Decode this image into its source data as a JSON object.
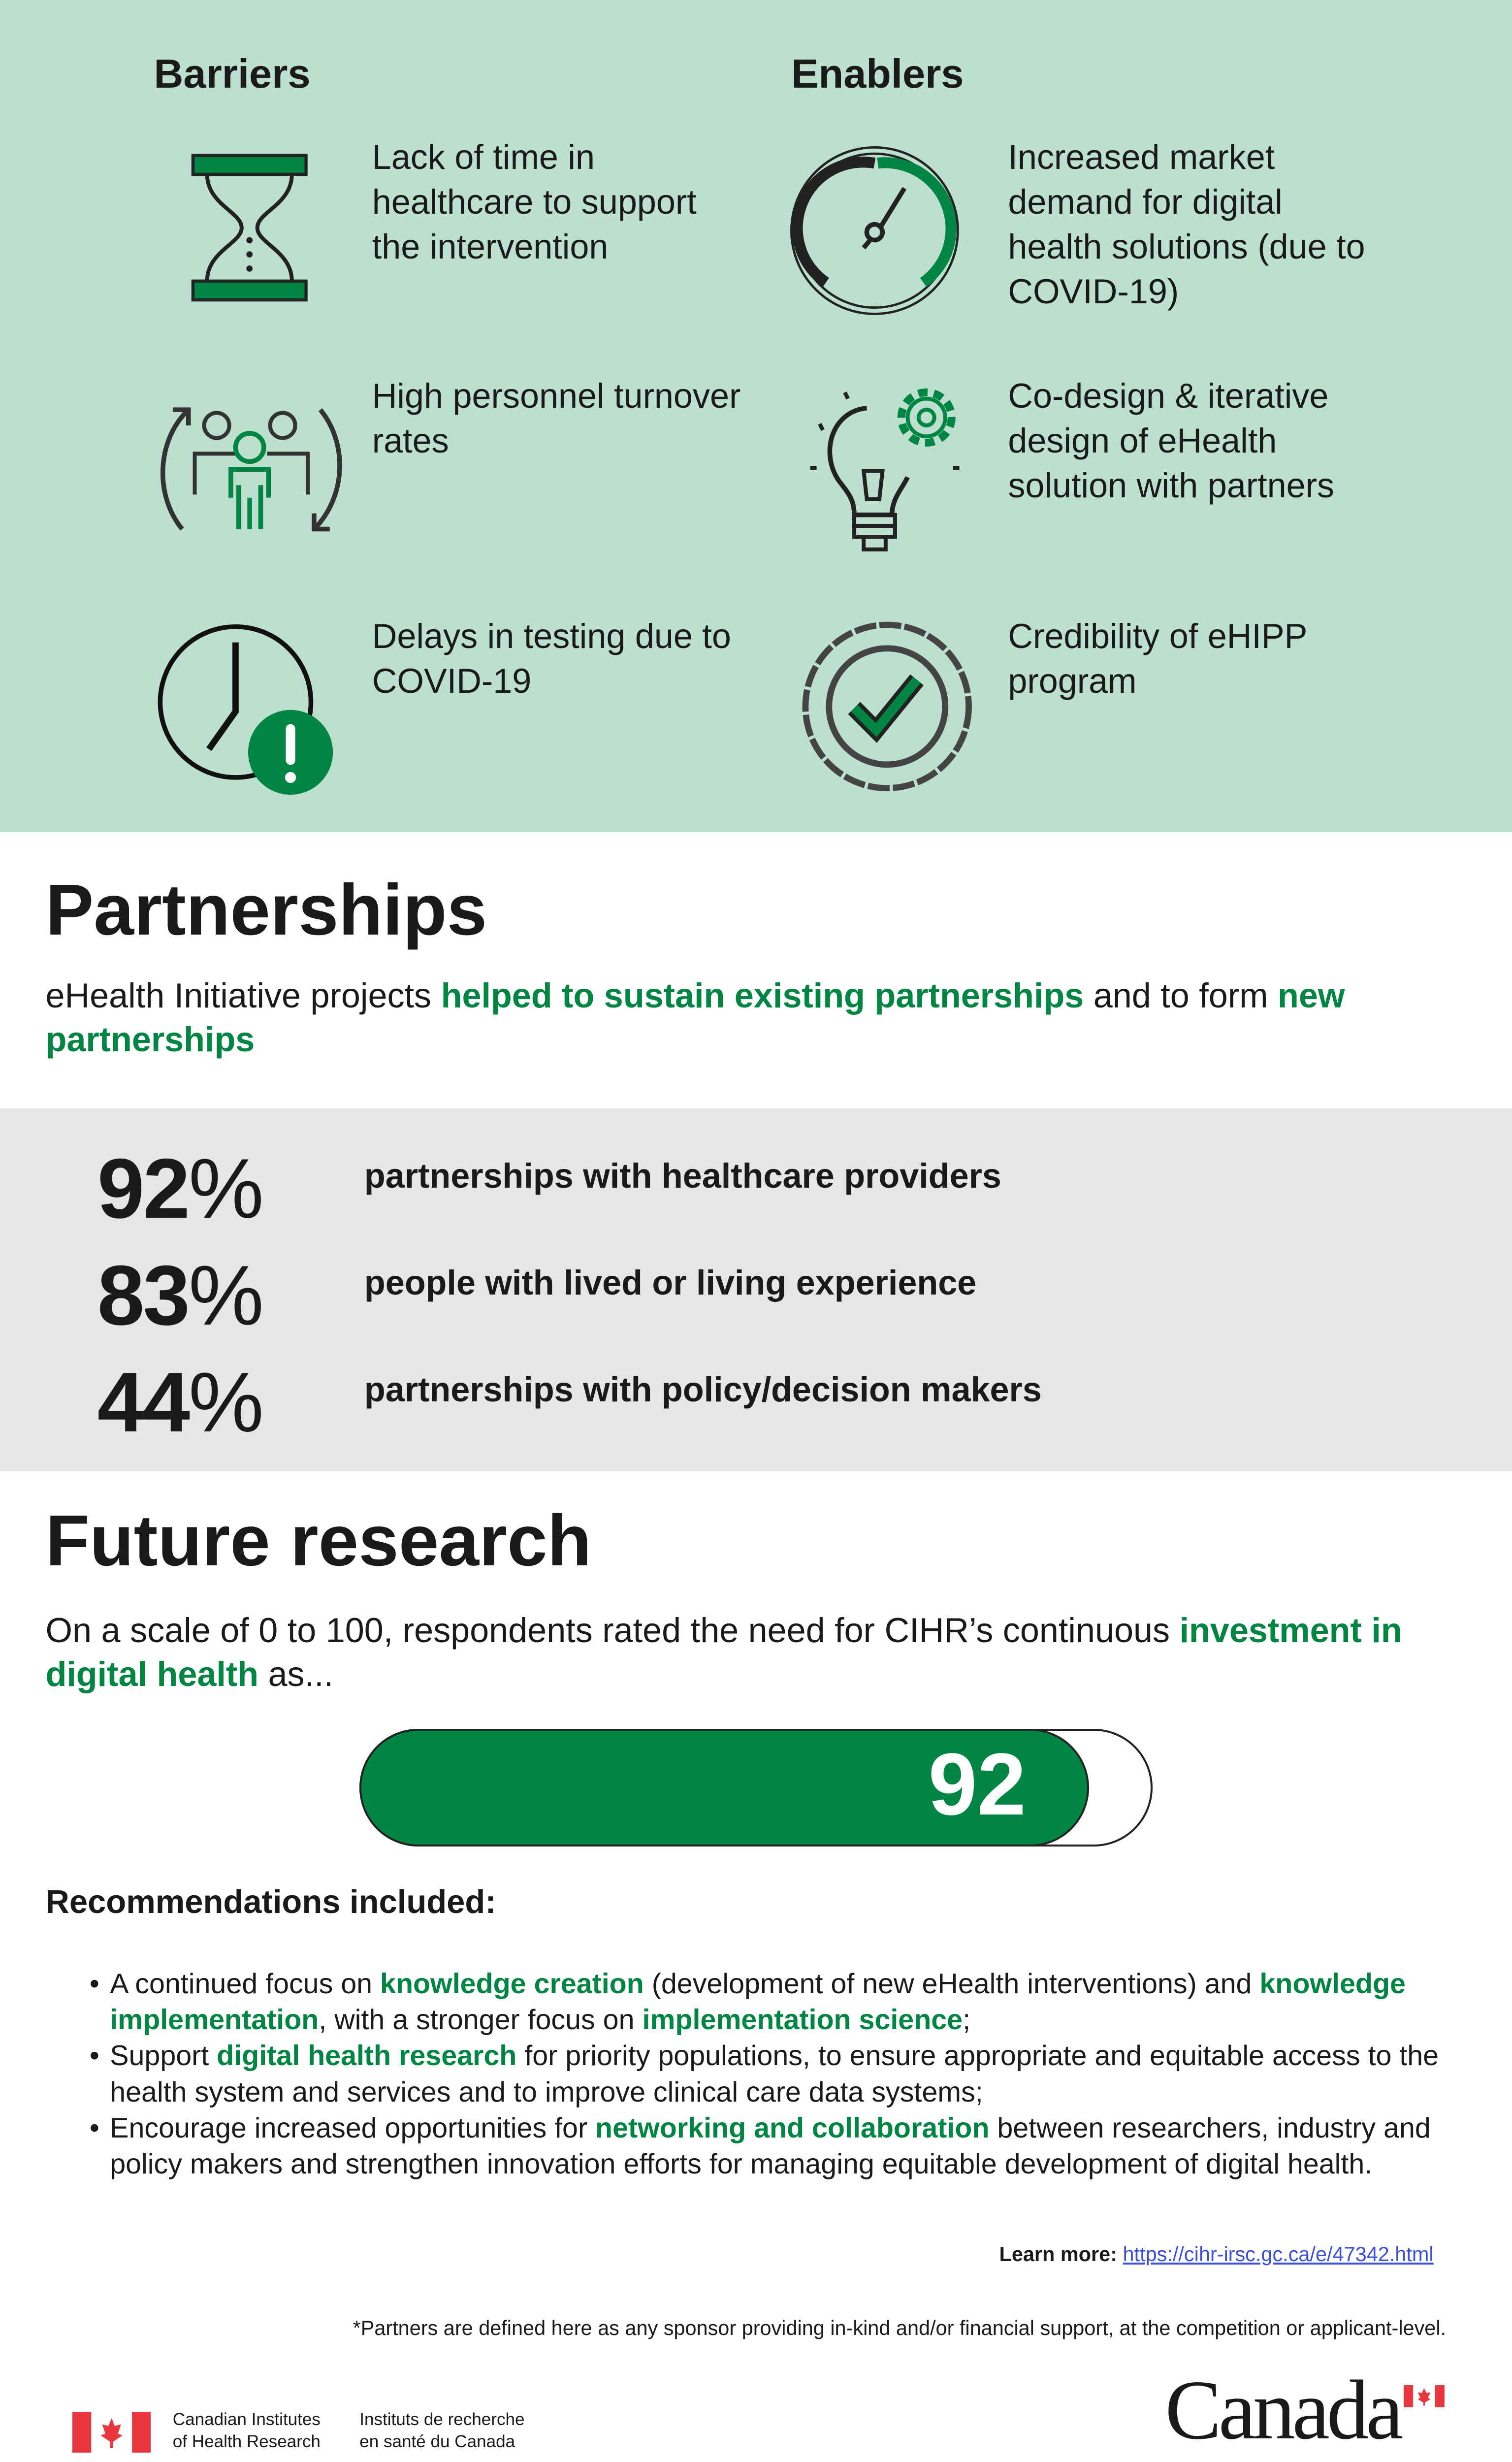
{
  "barriers": {
    "heading": "Barriers",
    "items": [
      {
        "icon": "hourglass-icon",
        "text": "Lack of time in healthcare to support the intervention"
      },
      {
        "icon": "personnel-turnover-icon",
        "text": "High personnel turnover rates"
      },
      {
        "icon": "clock-alert-icon",
        "text": "Delays in testing due to COVID-19"
      }
    ]
  },
  "enablers": {
    "heading": "Enablers",
    "items": [
      {
        "icon": "speedometer-icon",
        "text": "Increased market demand for digital health solutions (due to COVID-19)"
      },
      {
        "icon": "lightbulb-gear-icon",
        "text": "Co-design & iterative design of eHealth solution with partners"
      },
      {
        "icon": "check-seal-icon",
        "text": "Credibility of eHIPP program"
      }
    ]
  },
  "partnerships": {
    "title": "Partnerships",
    "intro_1": "eHealth Initiative projects ",
    "intro_hl1": "helped to sustain existing partnerships",
    "intro_2": " and to form ",
    "intro_hl2": "new partnerships",
    "stats": [
      {
        "value": "92",
        "unit": "%",
        "label": "partnerships with healthcare providers"
      },
      {
        "value": "83",
        "unit": "%",
        "label": "people with lived or living experience"
      },
      {
        "value": "44",
        "unit": "%",
        "label": "partnerships with policy/decision makers"
      }
    ]
  },
  "future": {
    "title": "Future research",
    "intro_1": "On a scale of 0 to 100, respondents rated the need for CIHR’s continuous ",
    "intro_hl": "investment in digital health",
    "intro_2": " as...",
    "rating": "92",
    "rating_max": 100,
    "rec_heading": "Recommendations included:",
    "recs": [
      {
        "p1": "A continued focus on ",
        "h1": "knowledge creation",
        "p2": " (development of new eHealth interventions) and ",
        "h2": "knowledge implementation",
        "p3": ", with a stronger focus on ",
        "h3": "implementation science",
        "p4": ";"
      },
      {
        "p1": "Support ",
        "h1": "digital health research",
        "p2": " for priority populations, to ensure appropriate and equitable access to the health system and services and to improve clinical care data systems;"
      },
      {
        "p1": "Encourage increased opportunities for ",
        "h1": "networking and collaboration",
        "p2": " between researchers, industry and policy makers and strengthen innovation efforts for managing equitable development of digital health."
      }
    ]
  },
  "learn_more_label": "Learn more:",
  "learn_more_link": "https://cihr-irsc.gc.ca/e/47342.html",
  "footnote": "*Partners are defined here as any sponsor providing in-kind and/or financial support, at the competition or applicant-level.",
  "footer": {
    "cihr_en_1": "Canadian Institutes",
    "cihr_en_2": "of Health Research",
    "cihr_fr_1": "Instituts de recherche",
    "cihr_fr_2": "en santé du Canada",
    "wordmark": "Canada"
  },
  "colors": {
    "mint": "#bddfcf",
    "green": "#008542",
    "grey": "#e6e6e6",
    "flag_red": "#e8373e"
  }
}
